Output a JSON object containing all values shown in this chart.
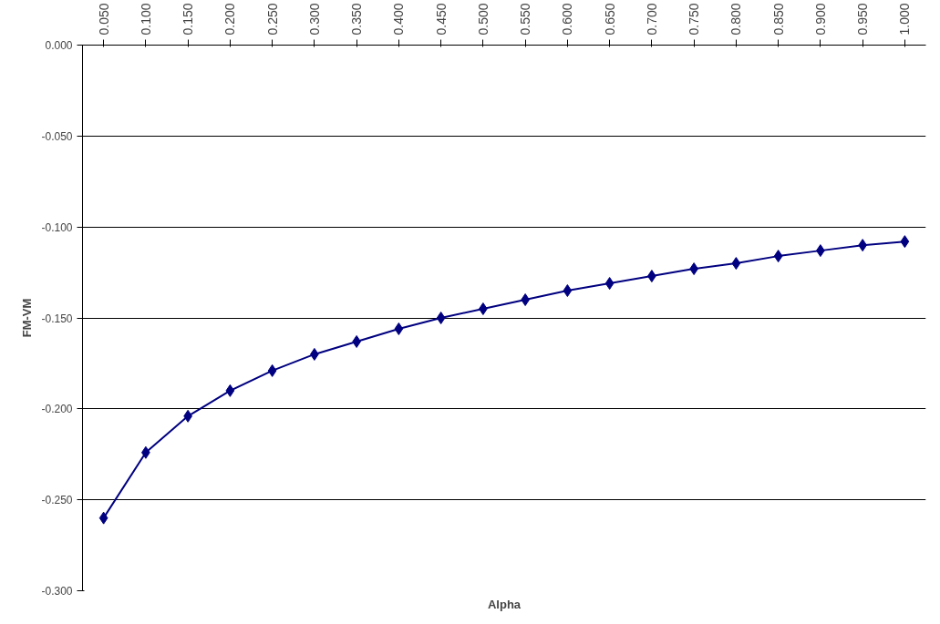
{
  "chart_data": {
    "type": "line",
    "xlabel": "Alpha",
    "ylabel": "FM-VM",
    "categories": [
      "0.050",
      "0.100",
      "0.150",
      "0.200",
      "0.250",
      "0.300",
      "0.350",
      "0.400",
      "0.450",
      "0.500",
      "0.550",
      "0.600",
      "0.650",
      "0.700",
      "0.750",
      "0.800",
      "0.850",
      "0.900",
      "0.950",
      "1.000"
    ],
    "series": [
      {
        "color": "#000080",
        "values": [
          -0.26,
          -0.224,
          -0.204,
          -0.19,
          -0.179,
          -0.17,
          -0.163,
          -0.156,
          -0.15,
          -0.145,
          -0.14,
          -0.135,
          -0.131,
          -0.127,
          -0.123,
          -0.12,
          -0.116,
          -0.113,
          -0.11,
          -0.108
        ]
      }
    ],
    "ylim": [
      -0.3,
      0
    ],
    "yticks": [
      {
        "value": -0.3,
        "label": "-0.300"
      },
      {
        "value": -0.25,
        "label": "-0.250"
      },
      {
        "value": -0.2,
        "label": "-0.200"
      },
      {
        "value": -0.15,
        "label": "-0.150"
      },
      {
        "value": -0.1,
        "label": "-0.100"
      },
      {
        "value": -0.05,
        "label": "-0.050"
      },
      {
        "value": 0,
        "label": "0.000"
      }
    ],
    "grid": "y",
    "marker": "diamond",
    "line_style": "solid"
  }
}
